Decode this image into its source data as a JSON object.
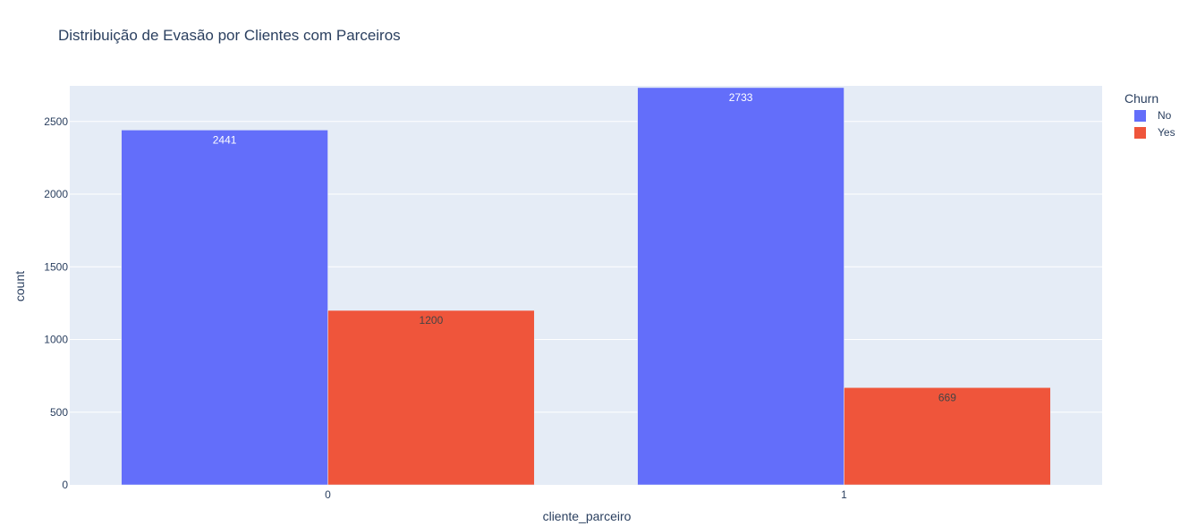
{
  "chart_data": {
    "type": "bar",
    "title": "Distribuição de Evasão por Clientes com Parceiros",
    "xlabel": "cliente_parceiro",
    "ylabel": "count",
    "categories": [
      "0",
      "1"
    ],
    "series": [
      {
        "name": "No",
        "values": [
          2441,
          2733
        ],
        "color": "#636efa",
        "label_color": "#ffffff"
      },
      {
        "name": "Yes",
        "values": [
          1200,
          669
        ],
        "color": "#ef553b",
        "label_color": "#444444"
      }
    ],
    "ylim": [
      0,
      2745
    ],
    "yticks": [
      0,
      500,
      1000,
      1500,
      2000,
      2500
    ],
    "legend_title": "Churn",
    "legend_position": "top-right",
    "grid": true,
    "plot_bg": "#e5ecf6"
  }
}
